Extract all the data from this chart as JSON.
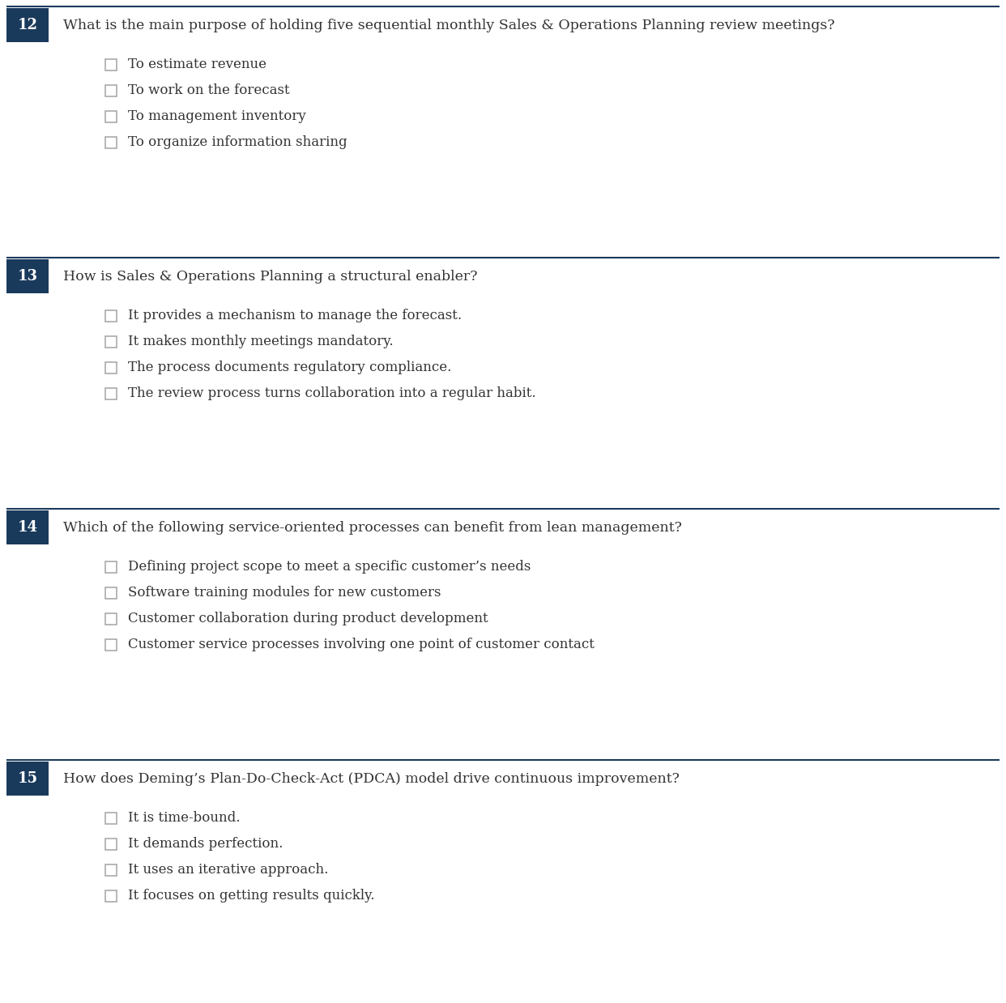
{
  "bg_color": "#ffffff",
  "header_bar_color": "#1a3a5c",
  "divider_color": "#1a3a5c",
  "question_num_color": "#ffffff",
  "question_text_color": "#333333",
  "option_text_color": "#333333",
  "checkbox_edge_color": "#aaaaaa",
  "questions": [
    {
      "num": "12",
      "text": "What is the main purpose of holding five sequential monthly Sales & Operations Planning review meetings?",
      "options": [
        "To estimate revenue",
        "To work on the forecast",
        "To management inventory",
        "To organize information sharing"
      ]
    },
    {
      "num": "13",
      "text": "How is Sales & Operations Planning a structural enabler?",
      "options": [
        "It provides a mechanism to manage the forecast.",
        "It makes monthly meetings mandatory.",
        "The process documents regulatory compliance.",
        "The review process turns collaboration into a regular habit."
      ]
    },
    {
      "num": "14",
      "text": "Which of the following service-oriented processes can benefit from lean management?",
      "options": [
        "Defining project scope to meet a specific customer’s needs",
        "Software training modules for new customers",
        "Customer collaboration during product development",
        "Customer service processes involving one point of customer contact"
      ]
    },
    {
      "num": "15",
      "text": "How does Deming’s Plan-Do-Check-Act (PDCA) model drive continuous improvement?",
      "options": [
        "It is time-bound.",
        "It demands perfection.",
        "It uses an iterative approach.",
        "It focuses on getting results quickly."
      ]
    }
  ],
  "figsize": [
    12.42,
    12.38
  ],
  "dpi": 100
}
